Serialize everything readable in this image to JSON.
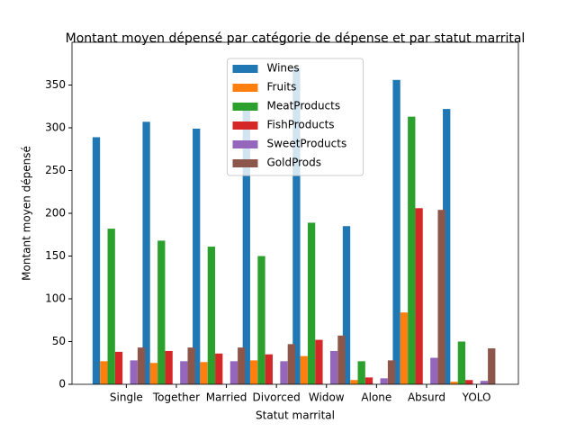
{
  "chart_data": {
    "type": "bar",
    "title": "Montant moyen dépensé par catégorie de dépense et par statut marrital",
    "x_label": "Statut marrital",
    "y_label": "Montant moyen dépensé",
    "categories": [
      "Single",
      "Together",
      "Married",
      "Divorced",
      "Widow",
      "Alone",
      "Absurd",
      "YOLO"
    ],
    "series": [
      {
        "name": "Wines",
        "color": "#1f77b4",
        "values": [
          289,
          307,
          299,
          325,
          370,
          185,
          356,
          322
        ]
      },
      {
        "name": "Fruits",
        "color": "#ff7f0e",
        "values": [
          27,
          25,
          26,
          28,
          33,
          5,
          84,
          3
        ]
      },
      {
        "name": "MeatProducts",
        "color": "#2ca02c",
        "values": [
          182,
          168,
          161,
          150,
          189,
          27,
          313,
          50
        ]
      },
      {
        "name": "FishProducts",
        "color": "#d62728",
        "values": [
          38,
          39,
          36,
          35,
          52,
          8,
          206,
          5
        ]
      },
      {
        "name": "SweetProducts",
        "color": "#9467bd",
        "values": [
          28,
          27,
          27,
          27,
          39,
          7,
          31,
          4
        ]
      },
      {
        "name": "GoldProds",
        "color": "#8c564b",
        "values": [
          43,
          43,
          43,
          47,
          57,
          28,
          204,
          42
        ]
      }
    ],
    "ylim": [
      0,
      400
    ],
    "yticks": [
      0,
      50,
      100,
      150,
      200,
      250,
      300,
      350
    ],
    "legend": "upper center"
  }
}
